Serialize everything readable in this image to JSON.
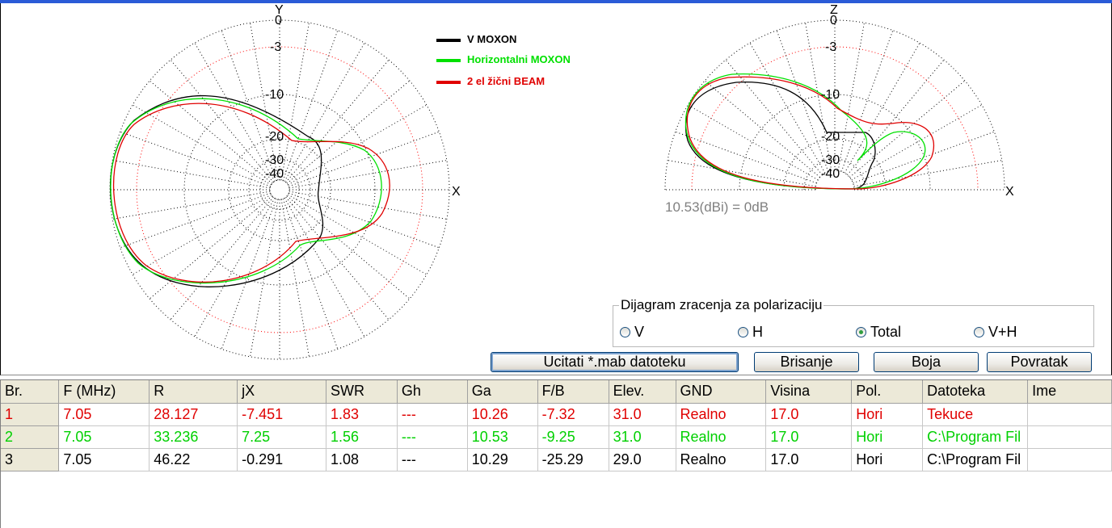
{
  "colors": {
    "v_moxon": "#000000",
    "h_moxon": "#00e000",
    "beam": "#e00000",
    "grid_ring_red": "#ff0000",
    "gain_text": "#808080"
  },
  "left_plot": {
    "axis_y": "Y",
    "axis_x": "X",
    "ring_labels": [
      "0",
      "-3",
      "-10",
      "-20",
      "-30",
      "-40"
    ]
  },
  "right_plot": {
    "axis_z": "Z",
    "axis_x": "X",
    "ring_labels": [
      "0",
      "-3",
      "-10",
      "-20",
      "-30",
      "-40"
    ],
    "gain_note": "10.53(dBi) = 0dB"
  },
  "legend": [
    {
      "label": "V MOXON",
      "color": "#000000"
    },
    {
      "label": "Horizontalni MOXON",
      "color": "#00e000"
    },
    {
      "label": "2 el žični BEAM",
      "color": "#e00000"
    }
  ],
  "polarization": {
    "title": "Dijagram zracenja za polarizaciju",
    "options": [
      {
        "label": "V",
        "selected": false
      },
      {
        "label": "H",
        "selected": false
      },
      {
        "label": "Total",
        "selected": true
      },
      {
        "label": "V+H",
        "selected": false
      }
    ]
  },
  "buttons": {
    "load": "Ucitati *.mab datoteku",
    "delete": "Brisanje",
    "color": "Boja",
    "back": "Povratak"
  },
  "table": {
    "columns": [
      "Br.",
      "F (MHz)",
      "R",
      "jX",
      "SWR",
      "Gh",
      "Ga",
      "F/B",
      "Elev.",
      "GND",
      "Visina",
      "Pol.",
      "Datoteka",
      "Ime"
    ],
    "rows": [
      {
        "color": "#e00000",
        "cells": [
          "1",
          "7.05",
          "28.127",
          "-7.451",
          "1.83",
          "---",
          "10.26",
          "-7.32",
          "31.0",
          "Realno",
          "17.0",
          "Hori",
          "Tekuce",
          ""
        ]
      },
      {
        "color": "#00d000",
        "cells": [
          "2",
          "7.05",
          "33.236",
          "7.25",
          "1.56",
          "---",
          "10.53",
          "-9.25",
          "31.0",
          "Realno",
          "17.0",
          "Hori",
          "C:\\Program Fil",
          ""
        ]
      },
      {
        "color": "#000000",
        "cells": [
          "3",
          "7.05",
          "46.22",
          "-0.291",
          "1.08",
          "---",
          "10.29",
          "-25.29",
          "29.0",
          "Realno",
          "17.0",
          "Hori",
          "C:\\Program Fil",
          ""
        ]
      }
    ]
  }
}
